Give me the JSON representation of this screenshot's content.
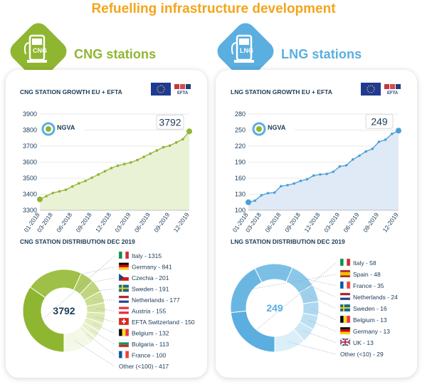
{
  "page_title": "Refuelling infrastructure development",
  "colors": {
    "title": "#f3a51b",
    "cng": "#8fb630",
    "lng": "#5aaee0",
    "dark": "#1b3a57"
  },
  "cng": {
    "badge_label": "CNG",
    "section_title": "CNG stations",
    "growth_title": "CNG STATION GROWTH EU + EFTA",
    "logo_text": "NGVA",
    "distribution_title": "CNG STATION DISTRIBUTION DEC 2019",
    "total": "3792"
  },
  "lng": {
    "badge_label": "LNG",
    "section_title": "LNG stations",
    "growth_title": "LNG STATION GROWTH EU + EFTA",
    "logo_text": "NGVA",
    "distribution_title": "LNG STATION DISTRIBUTION DEC 2019",
    "total": "249"
  },
  "efta_label": "EFTA",
  "chart_data": [
    {
      "type": "area",
      "title": "CNG STATION GROWTH EU + EFTA",
      "x": [
        "01-2018",
        "02-2018",
        "03-2018",
        "04-2018",
        "05-2018",
        "06-2018",
        "07-2018",
        "08-2018",
        "09-2018",
        "10-2018",
        "11-2018",
        "12-2018",
        "01-2019",
        "02-2019",
        "03-2019",
        "04-2019",
        "05-2019",
        "06-2019",
        "07-2019",
        "08-2019",
        "09-2019",
        "10-2019",
        "11-2019",
        "12-2019"
      ],
      "x_tick_labels": [
        "01-2018",
        "03-2018",
        "06-2018",
        "09-2018",
        "12-2018",
        "03-2019",
        "06-2019",
        "09-2019",
        "12-2019"
      ],
      "values": [
        3368,
        3388,
        3408,
        3418,
        3428,
        3448,
        3468,
        3483,
        3503,
        3523,
        3543,
        3563,
        3578,
        3588,
        3598,
        3613,
        3633,
        3653,
        3673,
        3693,
        3703,
        3723,
        3743,
        3792
      ],
      "end_label": "3792",
      "ylim": [
        3300,
        3900
      ],
      "yticks": [
        3300,
        3400,
        3500,
        3600,
        3700,
        3800,
        3900
      ],
      "color": "#8fb630",
      "fill": "#eaf2d6"
    },
    {
      "type": "area",
      "title": "LNG STATION GROWTH EU + EFTA",
      "x": [
        "01-2018",
        "02-2018",
        "03-2018",
        "04-2018",
        "05-2018",
        "06-2018",
        "07-2018",
        "08-2018",
        "09-2018",
        "10-2018",
        "11-2018",
        "12-2018",
        "01-2019",
        "02-2019",
        "03-2019",
        "04-2019",
        "05-2019",
        "06-2019",
        "07-2019",
        "08-2019",
        "09-2019",
        "10-2019",
        "11-2019",
        "12-2019"
      ],
      "x_tick_labels": [
        "01-2018",
        "03-2018",
        "06-2018",
        "09-2018",
        "12-2018",
        "03-2019",
        "06-2019",
        "09-2019",
        "12-2019"
      ],
      "values": [
        115,
        118,
        128,
        132,
        133,
        145,
        147,
        150,
        155,
        158,
        165,
        167,
        168,
        172,
        182,
        184,
        195,
        202,
        210,
        215,
        228,
        232,
        243,
        249
      ],
      "end_label": "249",
      "ylim": [
        100,
        280
      ],
      "yticks": [
        100,
        130,
        160,
        190,
        220,
        250,
        280
      ],
      "color": "#4a9fd6",
      "fill": "#dfeaf6"
    },
    {
      "type": "pie",
      "title": "CNG STATION DISTRIBUTION DEC 2019",
      "center_label": "3792",
      "entries": [
        {
          "name": "Italy",
          "value": 1315,
          "label": "Italy - 1315",
          "flag": "italy"
        },
        {
          "name": "Germany",
          "value": 841,
          "label": "Germany - 841",
          "flag": "germany"
        },
        {
          "name": "Czechia",
          "value": 201,
          "label": "Czechia - 201",
          "flag": "czechia"
        },
        {
          "name": "Sweden",
          "value": 191,
          "label": "Sweden - 191",
          "flag": "sweden"
        },
        {
          "name": "Netherlands",
          "value": 177,
          "label": "Netherlands - 177",
          "flag": "netherlands"
        },
        {
          "name": "Austria",
          "value": 155,
          "label": "Austria - 155",
          "flag": "austria"
        },
        {
          "name": "EFTA Switzerland",
          "value": 150,
          "label": "EFTA Switzerland - 150",
          "flag": "switzerland"
        },
        {
          "name": "Belgium",
          "value": 132,
          "label": "Belgium - 132",
          "flag": "belgium"
        },
        {
          "name": "Bulgaria",
          "value": 113,
          "label": "Bulgaria - 113",
          "flag": "bulgaria"
        },
        {
          "name": "France",
          "value": 100,
          "label": "France - 100",
          "flag": "france"
        },
        {
          "name": "Other (<100)",
          "value": 417,
          "label": "Other (<100) - 417",
          "flag": ""
        }
      ],
      "colors": [
        "#8fb630",
        "#9fc046",
        "#b0cb62",
        "#c0d57d",
        "#cadd90",
        "#d3e3a0",
        "#dbe8b1",
        "#e2edc0",
        "#e8f1cc",
        "#eef5d9",
        "#f4f8e6"
      ]
    },
    {
      "type": "pie",
      "title": "LNG STATION DISTRIBUTION DEC 2019",
      "center_label": "249",
      "entries": [
        {
          "name": "Italy",
          "value": 58,
          "label": "Italy - 58",
          "flag": "italy"
        },
        {
          "name": "Spain",
          "value": 48,
          "label": "Spain - 48",
          "flag": "spain"
        },
        {
          "name": "France",
          "value": 35,
          "label": "France - 35",
          "flag": "france"
        },
        {
          "name": "Netherlands",
          "value": 24,
          "label": "Netherlands - 24",
          "flag": "netherlands"
        },
        {
          "name": "Sweden",
          "value": 16,
          "label": "Sweden - 16",
          "flag": "sweden"
        },
        {
          "name": "Belgium",
          "value": 13,
          "label": "Belgium - 13",
          "flag": "belgium"
        },
        {
          "name": "Germany",
          "value": 13,
          "label": "Germany - 13",
          "flag": "germany"
        },
        {
          "name": "UK",
          "value": 13,
          "label": "UK - 13",
          "flag": "uk"
        },
        {
          "name": "Other (<10)",
          "value": 29,
          "label": "Other (<10) - 29",
          "flag": ""
        }
      ],
      "colors": [
        "#5aaee0",
        "#6ab6e3",
        "#7bbfe7",
        "#8cc8ea",
        "#9dd0ed",
        "#add8f0",
        "#bce0f3",
        "#cbe7f6",
        "#dbeff9"
      ]
    }
  ]
}
